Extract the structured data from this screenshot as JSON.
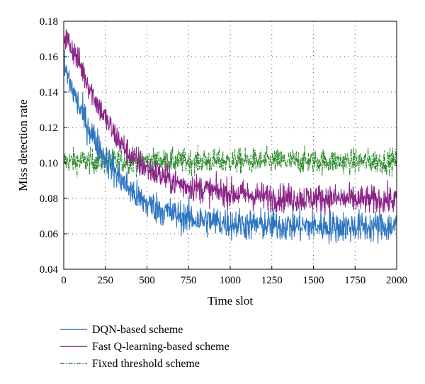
{
  "chart_data": {
    "type": "line",
    "title": "",
    "xlabel": "Time slot",
    "ylabel": "Miss detection rate",
    "xlim": [
      0,
      2000
    ],
    "ylim": [
      0.04,
      0.18
    ],
    "xticks": [
      0,
      250,
      500,
      750,
      1000,
      1250,
      1500,
      1750,
      2000
    ],
    "yticks": [
      0.04,
      0.06,
      0.08,
      0.1,
      0.12,
      0.14,
      0.16,
      0.18
    ],
    "xtick_labels": [
      "0",
      "250",
      "500",
      "750",
      "1000",
      "1250",
      "1500",
      "1750",
      "2000"
    ],
    "ytick_labels": [
      "0.04",
      "0.06",
      "0.08",
      "0.10",
      "0.12",
      "0.14",
      "0.16",
      "0.18"
    ],
    "grid": "dotted",
    "legend_position": "bottom",
    "series": [
      {
        "name": "DQN-based scheme",
        "color": "#2e75c0",
        "style": "solid",
        "noise": 0.0045,
        "x": [
          0,
          50,
          100,
          150,
          200,
          250,
          300,
          350,
          400,
          450,
          500,
          600,
          700,
          800,
          900,
          1000,
          1100,
          1200,
          1400,
          1600,
          1800,
          2000
        ],
        "y": [
          0.155,
          0.142,
          0.13,
          0.12,
          0.111,
          0.103,
          0.096,
          0.09,
          0.085,
          0.08,
          0.077,
          0.073,
          0.07,
          0.068,
          0.067,
          0.066,
          0.065,
          0.065,
          0.0645,
          0.064,
          0.064,
          0.064
        ]
      },
      {
        "name": "Fast Q-learning-based scheme",
        "color": "#8b2587",
        "style": "solid",
        "noise": 0.004,
        "x": [
          0,
          50,
          100,
          150,
          200,
          250,
          300,
          350,
          400,
          450,
          500,
          600,
          700,
          800,
          900,
          1000,
          1100,
          1200,
          1400,
          1600,
          1800,
          2000
        ],
        "y": [
          0.172,
          0.165,
          0.155,
          0.144,
          0.134,
          0.125,
          0.117,
          0.11,
          0.105,
          0.1,
          0.097,
          0.092,
          0.088,
          0.086,
          0.084,
          0.083,
          0.082,
          0.081,
          0.08,
          0.08,
          0.079,
          0.079
        ]
      },
      {
        "name": "Fixed threshold scheme",
        "color": "#2e8b2e",
        "style": "dashdot",
        "noise": 0.0035,
        "x": [
          0,
          500,
          1000,
          1500,
          2000
        ],
        "y": [
          0.101,
          0.101,
          0.101,
          0.101,
          0.101
        ]
      }
    ]
  }
}
